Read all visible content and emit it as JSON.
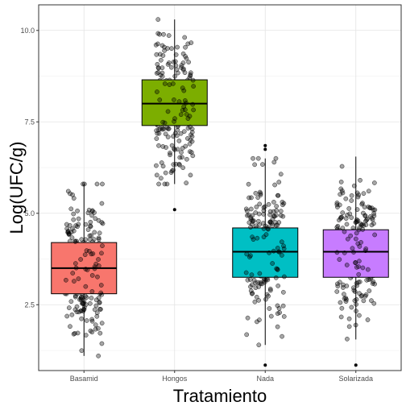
{
  "chart_data": {
    "type": "boxplot",
    "xlabel": "Tratamiento",
    "ylabel": "Log(UFC/g)",
    "ylim": [
      0.7,
      10.7
    ],
    "y_ticks": [
      2.5,
      5.0,
      7.5,
      10.0
    ],
    "y_tick_labels": [
      "2.5",
      "5.0",
      "7.5",
      "10.0"
    ],
    "categories": [
      "Basamid",
      "Hongos",
      "Nada",
      "Solarizada"
    ],
    "grid": true,
    "legend": "none",
    "colors": [
      "#F8766D",
      "#7CAE00",
      "#00BFC4",
      "#C77CFF"
    ],
    "boxes": [
      {
        "category": "Basamid",
        "whisker_low": 1.1,
        "q1": 2.8,
        "median": 3.5,
        "q3": 4.2,
        "whisker_high": 5.8,
        "outliers": []
      },
      {
        "category": "Hongos",
        "whisker_low": 5.8,
        "q1": 7.4,
        "median": 8.0,
        "q3": 8.65,
        "whisker_high": 10.3,
        "outliers": [
          5.1
        ]
      },
      {
        "category": "Nada",
        "whisker_low": 1.4,
        "q1": 3.25,
        "median": 3.95,
        "q3": 4.6,
        "whisker_high": 6.5,
        "outliers": [
          0.85,
          6.75,
          6.85
        ]
      },
      {
        "category": "Solarizada",
        "whisker_low": 1.55,
        "q1": 3.25,
        "median": 3.95,
        "q3": 4.55,
        "whisker_high": 6.55,
        "outliers": [
          0.85
        ]
      }
    ],
    "points_per_group": 180
  }
}
